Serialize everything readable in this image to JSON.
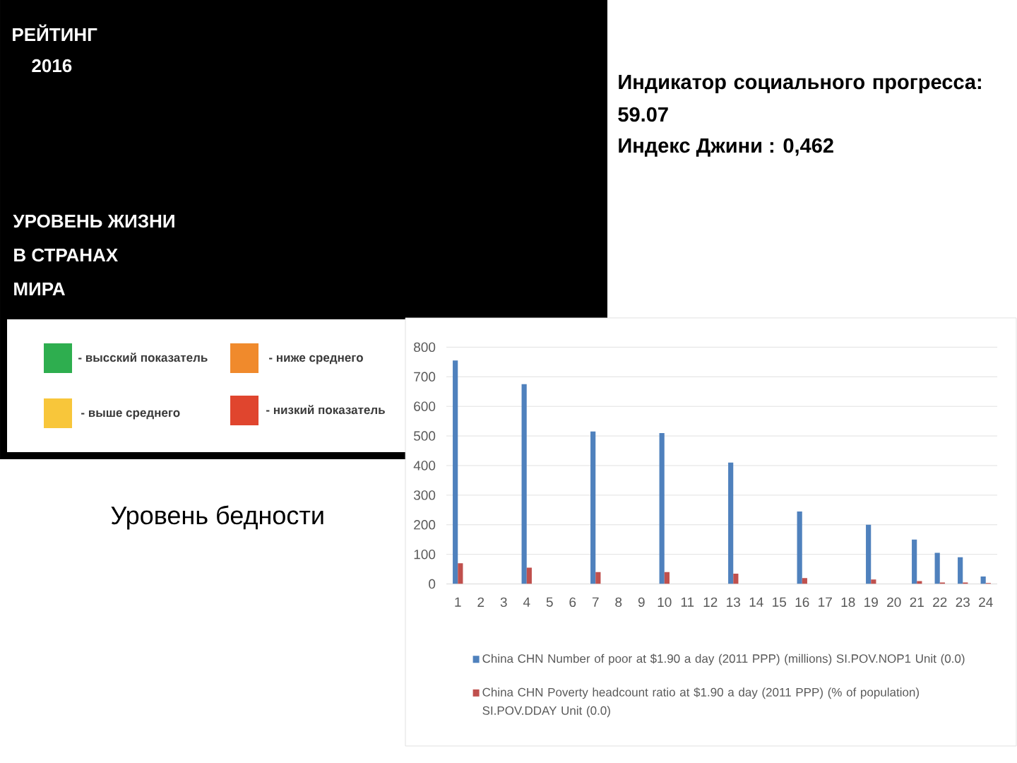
{
  "chart_data": {
    "type": "bar",
    "categories": [
      "1",
      "2",
      "3",
      "4",
      "5",
      "6",
      "7",
      "8",
      "9",
      "10",
      "11",
      "12",
      "13",
      "14",
      "15",
      "16",
      "17",
      "18",
      "19",
      "20",
      "21",
      "22",
      "23",
      "24"
    ],
    "series": [
      {
        "name": "China CHN Number of poor at $1.90 a day (2011 PPP) (millions) SI.POV.NOP1 Unit (0.0)",
        "color": "#4f81bd",
        "values": [
          755,
          null,
          null,
          675,
          null,
          null,
          515,
          null,
          null,
          510,
          null,
          null,
          410,
          null,
          null,
          245,
          null,
          null,
          200,
          null,
          150,
          105,
          90,
          25
        ]
      },
      {
        "name": "China CHN Poverty headcount ratio at $1.90 a day (2011 PPP) (% of population) SI.POV.DDAY Unit (0.0)",
        "color": "#c0504d",
        "values": [
          70,
          null,
          null,
          55,
          null,
          null,
          40,
          null,
          null,
          40,
          null,
          null,
          35,
          null,
          null,
          20,
          null,
          null,
          15,
          null,
          10,
          5,
          5,
          3
        ]
      }
    ],
    "ylim": [
      0,
      800
    ],
    "yticks": [
      0,
      100,
      200,
      300,
      400,
      500,
      600,
      700,
      800
    ],
    "grid": "y",
    "legend": "bottom",
    "annotations": [
      "РЕЙТИНГ",
      "2016",
      "УРОВЕНЬ ЖИЗНИ",
      "В СТРАНАХ",
      "МИРА",
      "- высский показатель",
      "- ниже среднего",
      "- выше среднего",
      "- низкий показатель",
      "Индикатор социального прогресса: 59.07",
      "Индекс Джини : 0,462",
      "Уровень бедности"
    ]
  }
}
